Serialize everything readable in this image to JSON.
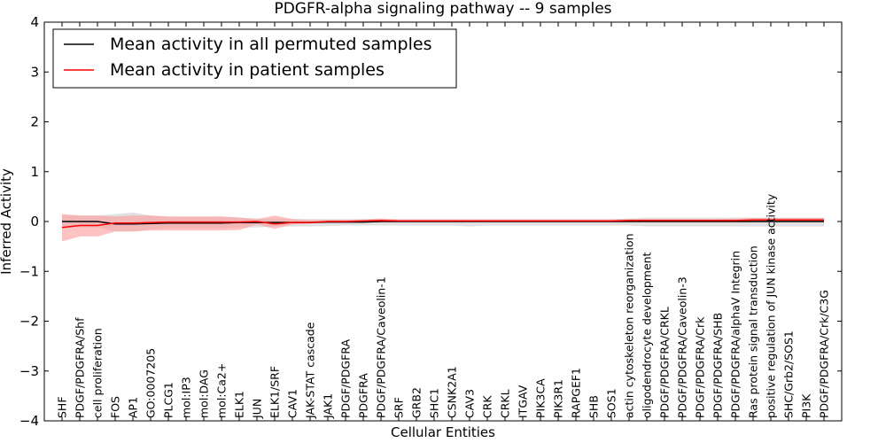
{
  "chart_data": {
    "type": "line",
    "title": "PDGFR-alpha signaling pathway -- 9 samples",
    "xlabel": "Cellular Entities",
    "ylabel": "Inferred Activity",
    "ylim": [
      -4,
      4
    ],
    "yticks": [
      "4",
      "3",
      "2",
      "1",
      "0",
      "−1",
      "−2",
      "−3",
      "−4"
    ],
    "ytick_values": [
      4,
      3,
      2,
      1,
      0,
      -1,
      -2,
      -3,
      -4
    ],
    "legend_position": "top-left",
    "categories": [
      "SHF",
      "PDGF/PDGFRA/Shf",
      "cell proliferation",
      "FOS",
      "AP1",
      "GO:0007205",
      "PLCG1",
      "mol:IP3",
      "mol:DAG",
      "mol:Ca2+",
      "ELK1",
      "JUN",
      "ELK1/SRF",
      "CAV1",
      "JAK-STAT cascade",
      "JAK1",
      "PDGF/PDGFRA",
      "PDGFRA",
      "PDGF/PDGFRA/Caveolin-1",
      "SRF",
      "GRB2",
      "SHC1",
      "CSNK2A1",
      "CAV3",
      "CRK",
      "CRKL",
      "ITGAV",
      "PIK3CA",
      "PIK3R1",
      "RAPGEF1",
      "SHB",
      "SOS1",
      "actin cytoskeleton reorganization",
      "oligodendrocyte development",
      "PDGF/PDGFRA/CRKL",
      "PDGF/PDGFRA/Caveolin-3",
      "PDGF/PDGFRA/Crk",
      "PDGF/PDGFRA/SHB",
      "PDGF/PDGFRA/alphaV Integrin",
      "Ras protein signal transduction",
      "positive regulation of JUN kinase activity",
      "SHC/Grb2/SOS1",
      "PI3K",
      "PDGF/PDGFRA/Crk/C3G"
    ],
    "series": [
      {
        "name": "Mean activity in all permuted samples",
        "color": "#000000",
        "band_color": "#c8c8c8",
        "values": [
          0.0,
          0.0,
          0.0,
          -0.05,
          -0.05,
          -0.04,
          -0.03,
          -0.03,
          -0.03,
          -0.03,
          -0.02,
          -0.02,
          -0.02,
          -0.02,
          -0.02,
          -0.01,
          -0.01,
          -0.01,
          0.0,
          0.0,
          0.0,
          0.0,
          0.0,
          0.0,
          0.0,
          0.0,
          0.0,
          0.0,
          0.0,
          0.0,
          0.0,
          0.0,
          0.0,
          0.0,
          0.0,
          0.0,
          0.0,
          0.0,
          0.0,
          0.0,
          0.0,
          0.0,
          0.0,
          0.0
        ],
        "lower": [
          -0.12,
          -0.12,
          -0.12,
          -0.2,
          -0.2,
          -0.16,
          -0.14,
          -0.14,
          -0.14,
          -0.14,
          -0.12,
          -0.12,
          -0.1,
          -0.1,
          -0.1,
          -0.09,
          -0.08,
          -0.08,
          -0.08,
          -0.08,
          -0.08,
          -0.08,
          -0.08,
          -0.1,
          -0.08,
          -0.08,
          -0.08,
          -0.08,
          -0.08,
          -0.08,
          -0.08,
          -0.08,
          -0.08,
          -0.1,
          -0.1,
          -0.1,
          -0.1,
          -0.1,
          -0.1,
          -0.1,
          -0.1,
          -0.1,
          -0.1,
          -0.1
        ],
        "upper": [
          0.12,
          0.12,
          0.12,
          0.15,
          0.18,
          0.12,
          0.1,
          0.1,
          0.1,
          0.1,
          0.08,
          0.06,
          0.06,
          0.05,
          0.05,
          0.05,
          0.05,
          0.05,
          0.05,
          0.05,
          0.05,
          0.05,
          0.05,
          0.05,
          0.05,
          0.05,
          0.05,
          0.05,
          0.05,
          0.05,
          0.05,
          0.05,
          0.06,
          0.08,
          0.08,
          0.08,
          0.08,
          0.08,
          0.08,
          0.08,
          0.08,
          0.08,
          0.08,
          0.08
        ]
      },
      {
        "name": "Mean activity in patient samples",
        "color": "#ff0000",
        "band_color": "#ff9999",
        "values": [
          -0.12,
          -0.08,
          -0.08,
          -0.03,
          -0.03,
          -0.02,
          -0.01,
          -0.01,
          -0.01,
          -0.01,
          -0.01,
          0.0,
          -0.05,
          -0.02,
          -0.02,
          0.0,
          0.0,
          0.01,
          0.02,
          0.01,
          0.01,
          0.01,
          0.01,
          0.01,
          0.01,
          0.01,
          0.01,
          0.01,
          0.01,
          0.01,
          0.01,
          0.01,
          0.02,
          0.02,
          0.02,
          0.02,
          0.02,
          0.02,
          0.02,
          0.03,
          0.03,
          0.03,
          0.03,
          0.03
        ],
        "lower": [
          -0.4,
          -0.3,
          -0.3,
          -0.2,
          -0.2,
          -0.18,
          -0.18,
          -0.18,
          -0.18,
          -0.18,
          -0.17,
          -0.06,
          -0.15,
          -0.06,
          -0.04,
          -0.02,
          -0.01,
          0.0,
          0.0,
          0.0,
          0.0,
          0.0,
          0.0,
          0.0,
          0.0,
          0.0,
          0.0,
          0.0,
          0.0,
          0.0,
          0.0,
          0.0,
          0.0,
          0.0,
          0.0,
          0.0,
          0.0,
          0.0,
          0.0,
          0.0,
          0.0,
          0.0,
          0.0,
          0.0
        ],
        "upper": [
          0.15,
          0.12,
          0.12,
          0.1,
          0.12,
          0.12,
          0.1,
          0.1,
          0.1,
          0.1,
          0.08,
          0.05,
          0.12,
          0.05,
          0.03,
          0.03,
          0.03,
          0.04,
          0.06,
          0.04,
          0.04,
          0.04,
          0.04,
          0.04,
          0.04,
          0.04,
          0.04,
          0.04,
          0.04,
          0.04,
          0.04,
          0.04,
          0.05,
          0.05,
          0.05,
          0.05,
          0.05,
          0.05,
          0.06,
          0.07,
          0.07,
          0.07,
          0.07,
          0.07
        ]
      }
    ]
  }
}
